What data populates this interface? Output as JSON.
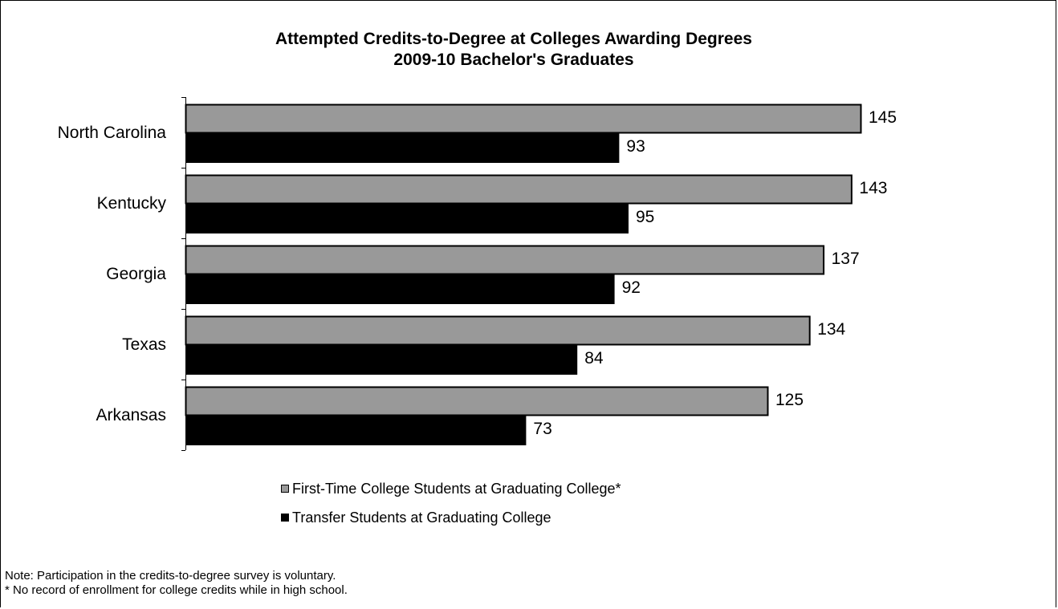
{
  "chart_data": {
    "type": "bar",
    "orientation": "horizontal",
    "title": "Attempted Credits-to-Degree at Colleges Awarding Degrees",
    "subtitle": "2009-10 Bachelor's Graduates",
    "categories": [
      "North Carolina",
      "Kentucky",
      "Georgia",
      "Texas",
      "Arkansas"
    ],
    "series": [
      {
        "name": "First-Time College Students at Graduating College*",
        "values": [
          145,
          143,
          137,
          134,
          125
        ],
        "color": "#999999"
      },
      {
        "name": "Transfer Students at Graduating College",
        "values": [
          93,
          95,
          92,
          84,
          73
        ],
        "color": "#000000"
      }
    ],
    "xlim": [
      0,
      145
    ],
    "grid": false,
    "legend_position": "bottom"
  },
  "notes": {
    "line1": "Note: Participation in the credits-to-degree survey is voluntary.",
    "line2": "* No record of enrollment for college credits while in high school."
  }
}
